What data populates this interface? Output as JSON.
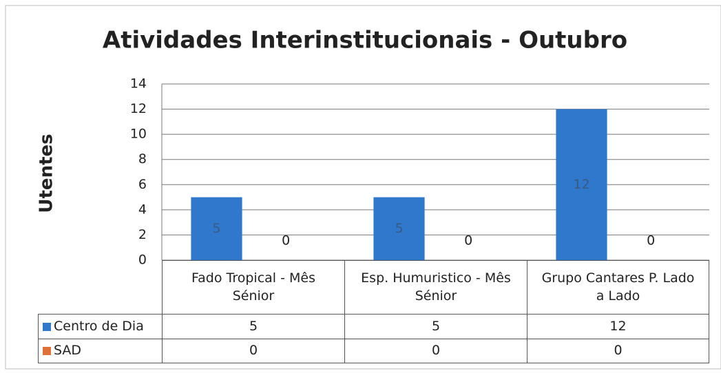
{
  "chart_data": {
    "type": "bar",
    "title": "Atividades Interinstitucionais - Outubro",
    "y_label": "Utentes",
    "categories": [
      "Fado Tropical - Mês Sénior",
      "Esp. Humuristico - Mês Sénior",
      "Grupo Cantares P. Lado a Lado"
    ],
    "series": [
      {
        "name": "Centro de Dia",
        "color": "#2f78cc",
        "values": [
          5,
          5,
          12
        ]
      },
      {
        "name": "SAD",
        "color": "#e0703a",
        "values": [
          0,
          0,
          0
        ]
      }
    ],
    "ylim": [
      0,
      14
    ],
    "yticks": [
      0,
      2,
      4,
      6,
      8,
      10,
      12,
      14
    ],
    "grid": true,
    "legend": "table"
  }
}
